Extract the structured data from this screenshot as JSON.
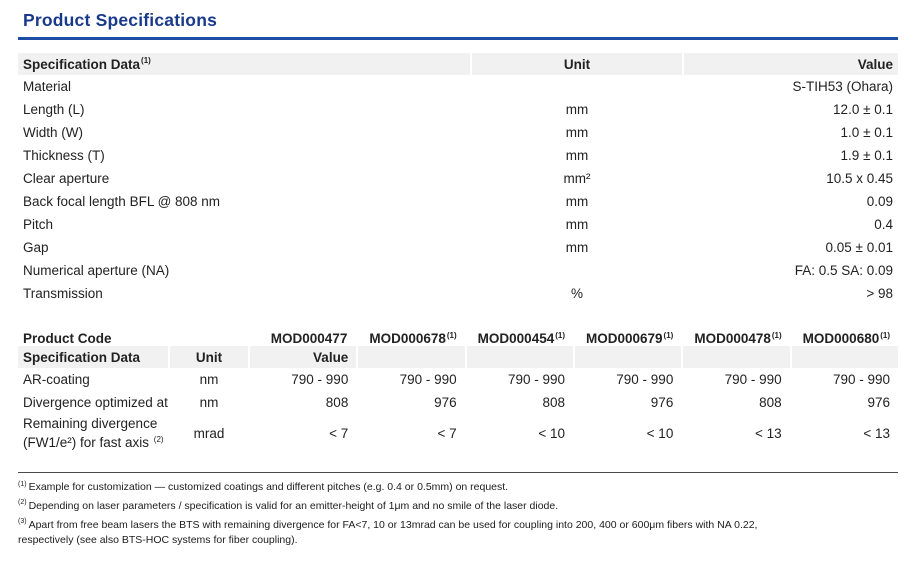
{
  "page": {
    "title": "Product Specifications"
  },
  "colors": {
    "title": "#19398a",
    "rule": "#1d4ea6",
    "header_bg": "#f1f1f1",
    "text": "#222222"
  },
  "table1": {
    "header": {
      "label": "Specification Data",
      "label_sup": "(1)",
      "unit": "Unit",
      "value": "Value"
    },
    "rows": [
      {
        "label": "Material",
        "unit": "",
        "value": "S-TIH53 (Ohara)"
      },
      {
        "label": "Length (L)",
        "unit": "mm",
        "value": "12.0 ± 0.1"
      },
      {
        "label": "Width (W)",
        "unit": "mm",
        "value": "1.0 ± 0.1"
      },
      {
        "label": "Thickness (T)",
        "unit": "mm",
        "value": "1.9 ± 0.1"
      },
      {
        "label": "Clear aperture",
        "unit": "mm²",
        "value": "10.5 x 0.45"
      },
      {
        "label": "Back focal length BFL @ 808 nm",
        "unit": "mm",
        "value": "0.09"
      },
      {
        "label": "Pitch",
        "unit": "mm",
        "value": "0.4"
      },
      {
        "label": "Gap",
        "unit": "mm",
        "value": "0.05 ± 0.01"
      },
      {
        "label": "Numerical aperture (NA)",
        "unit": "",
        "value": "FA: 0.5 SA: 0.09"
      },
      {
        "label": "Transmission",
        "unit": "%",
        "value": "> 98"
      }
    ]
  },
  "table2": {
    "product_code_label": "Product Code",
    "product_codes": [
      {
        "code": "MOD000477",
        "sup": ""
      },
      {
        "code": "MOD000678",
        "sup": "(1)"
      },
      {
        "code": "MOD000454",
        "sup": "(1)"
      },
      {
        "code": "MOD000679",
        "sup": "(1)"
      },
      {
        "code": "MOD000478",
        "sup": "(1)"
      },
      {
        "code": "MOD000680",
        "sup": "(1)"
      }
    ],
    "header": {
      "label": "Specification Data",
      "unit": "Unit",
      "value": "Value"
    },
    "rows": [
      {
        "label": "AR-coating",
        "unit": "nm",
        "values": [
          "790 - 990",
          "790 - 990",
          "790 - 990",
          "790 - 990",
          "790 - 990",
          "790 - 990"
        ]
      },
      {
        "label": "Divergence optimized at",
        "unit": "nm",
        "values": [
          "808",
          "976",
          "808",
          "976",
          "808",
          "976"
        ]
      },
      {
        "label": "Remaining divergence",
        "label2": "(FW1/e²) for fast axis ",
        "sup": "(2)",
        "unit": "mrad",
        "values": [
          "< 7",
          "< 7",
          "< 10",
          "< 10",
          "< 13",
          "< 13"
        ]
      }
    ]
  },
  "footnotes": [
    {
      "marker": "(1)",
      "text": "Example for customization — customized coatings and different pitches (e.g. 0.4 or 0.5mm) on request."
    },
    {
      "marker": "(2)",
      "text": "Depending on laser parameters / specification is valid for an emitter-height of 1μm and no smile of the laser diode."
    },
    {
      "marker": "(3)",
      "text": "Apart from free beam lasers the BTS with remaining divergence for FA<7, 10 or 13mrad can be used for coupling into 200, 400 or 600μm fibers with NA 0.22,",
      "text2": "respectively (see also BTS-HOC systems for fiber coupling)."
    }
  ]
}
